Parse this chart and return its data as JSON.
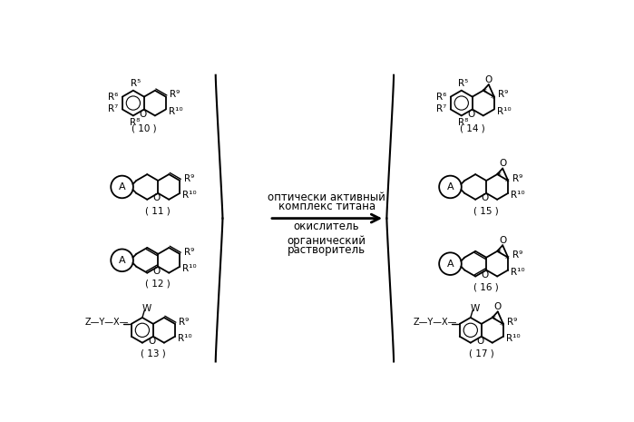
{
  "background_color": "#ffffff",
  "figsize": [
    6.99,
    4.65
  ],
  "dpi": 100,
  "reaction_text_line1": "оптически активный",
  "reaction_text_line2": "комплекс титана",
  "reaction_text_line3": "окислитель",
  "reaction_text_line4": "органический",
  "reaction_text_line5": "растворитель"
}
